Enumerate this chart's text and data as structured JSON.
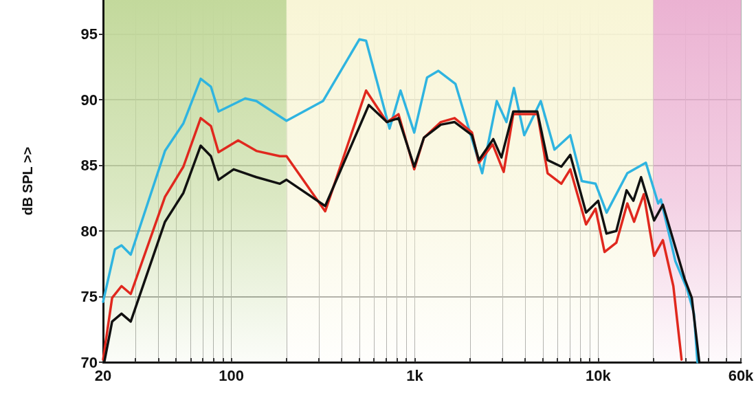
{
  "chart_data": {
    "type": "line",
    "ylabel": "dB SPL >>",
    "log": "x",
    "xlim": [
      20,
      60000
    ],
    "xticks": [
      {
        "value": 20,
        "label": "20"
      },
      {
        "value": 30,
        "label": null
      },
      {
        "value": 40,
        "label": null
      },
      {
        "value": 50,
        "label": null
      },
      {
        "value": 60,
        "label": null
      },
      {
        "value": 70,
        "label": null
      },
      {
        "value": 80,
        "label": null
      },
      {
        "value": 90,
        "label": null
      },
      {
        "value": 100,
        "label": "100"
      },
      {
        "value": 200,
        "label": null
      },
      {
        "value": 300,
        "label": null
      },
      {
        "value": 400,
        "label": null
      },
      {
        "value": 500,
        "label": null
      },
      {
        "value": 600,
        "label": null
      },
      {
        "value": 700,
        "label": null
      },
      {
        "value": 800,
        "label": null
      },
      {
        "value": 900,
        "label": null
      },
      {
        "value": 1000,
        "label": "1k"
      },
      {
        "value": 2000,
        "label": null
      },
      {
        "value": 3000,
        "label": null
      },
      {
        "value": 4000,
        "label": null
      },
      {
        "value": 5000,
        "label": null
      },
      {
        "value": 6000,
        "label": null
      },
      {
        "value": 7000,
        "label": null
      },
      {
        "value": 8000,
        "label": null
      },
      {
        "value": 9000,
        "label": null
      },
      {
        "value": 10000,
        "label": "10k"
      },
      {
        "value": 20000,
        "label": null
      },
      {
        "value": 30000,
        "label": null
      },
      {
        "value": 40000,
        "label": null
      },
      {
        "value": 50000,
        "label": null
      },
      {
        "value": 60000,
        "label": "60k"
      }
    ],
    "ylim": [
      70,
      97.6
    ],
    "yticks": [
      70,
      75,
      80,
      85,
      90,
      95
    ],
    "grid": true,
    "marker": "none",
    "line_style": "solid",
    "bands": [
      {
        "axis": "x",
        "from": 20,
        "to": 200,
        "color": "#c3d99c"
      },
      {
        "axis": "x",
        "from": 200,
        "to": 20000,
        "color": "#f8f5d6"
      },
      {
        "axis": "x",
        "from": 20000,
        "to": 60000,
        "color": "#ebb2d2"
      }
    ],
    "series": [
      {
        "color": "#2fb4e0",
        "x": [
          20,
          23.2,
          25.2,
          28.3,
          43.5,
          54.8,
          68.1,
          77.4,
          85.2,
          119,
          137,
          200,
          316,
          499,
          543,
          729,
          837,
          994,
          1168,
          1346,
          1668,
          2332,
          2800,
          3162,
          3475,
          3954,
          4866,
          5780,
          7047,
          8150,
          9680,
          11120,
          14420,
          18200,
          21240,
          21980,
          26360,
          30500,
          33300,
          34760
        ],
        "values": [
          74.6,
          78.6,
          78.9,
          78.2,
          86.1,
          88.2,
          91.6,
          91.0,
          89.1,
          90.1,
          89.9,
          88.4,
          89.9,
          94.6,
          94.5,
          87.8,
          90.7,
          87.5,
          91.7,
          92.2,
          91.2,
          84.4,
          89.9,
          88.3,
          90.9,
          87.3,
          89.9,
          86.2,
          87.3,
          83.8,
          83.6,
          81.4,
          84.4,
          85.2,
          82.1,
          82.4,
          77.7,
          75.6,
          73.7,
          70
        ]
      },
      {
        "color": "#e0281e",
        "x": [
          20,
          22.4,
          25.2,
          28.3,
          43.5,
          54.8,
          68.1,
          77.4,
          85.2,
          109,
          137,
          184,
          200,
          325,
          543,
          705,
          816,
          994,
          1122,
          1388,
          1650,
          2052,
          2238,
          2660,
          3055,
          3446,
          4675,
          5300,
          6300,
          7047,
          8590,
          9680,
          10840,
          12560,
          14420,
          15700,
          17740,
          20180,
          22540,
          25700,
          28500
        ],
        "values": [
          70.2,
          74.9,
          75.8,
          75.2,
          82.6,
          84.9,
          88.6,
          88.0,
          86.0,
          86.9,
          86.1,
          85.7,
          85.7,
          81.5,
          90.7,
          88.3,
          88.9,
          84.7,
          87.1,
          88.3,
          88.6,
          87.5,
          85.2,
          86.6,
          84.5,
          88.9,
          88.9,
          84.4,
          83.6,
          84.7,
          80.5,
          81.7,
          78.4,
          79.1,
          82.1,
          80.7,
          82.8,
          78.1,
          79.3,
          75.8,
          70.2
        ]
      },
      {
        "color": "#111111",
        "x": [
          20.3,
          22.4,
          25.2,
          28.3,
          43.5,
          54.8,
          68.1,
          77.4,
          85.2,
          103,
          137,
          184,
          200,
          325,
          562,
          705,
          816,
          994,
          1122,
          1388,
          1650,
          2052,
          2238,
          2680,
          2970,
          3446,
          4660,
          5300,
          6300,
          7047,
          8590,
          10000,
          11100,
          12560,
          14290,
          15560,
          17140,
          20180,
          22540,
          29700,
          32400,
          35600
        ],
        "values": [
          70,
          73.1,
          73.7,
          73.1,
          80.7,
          82.9,
          86.5,
          85.7,
          83.9,
          84.7,
          84.1,
          83.6,
          83.9,
          81.9,
          89.6,
          88.3,
          88.6,
          84.9,
          87.1,
          88.1,
          88.3,
          87.3,
          85.4,
          87.0,
          85.6,
          89.1,
          89.1,
          85.4,
          84.9,
          85.8,
          81.4,
          82.3,
          79.8,
          80.0,
          83.1,
          82.3,
          84.1,
          80.8,
          82.0,
          76.3,
          74.9,
          70
        ]
      }
    ]
  }
}
